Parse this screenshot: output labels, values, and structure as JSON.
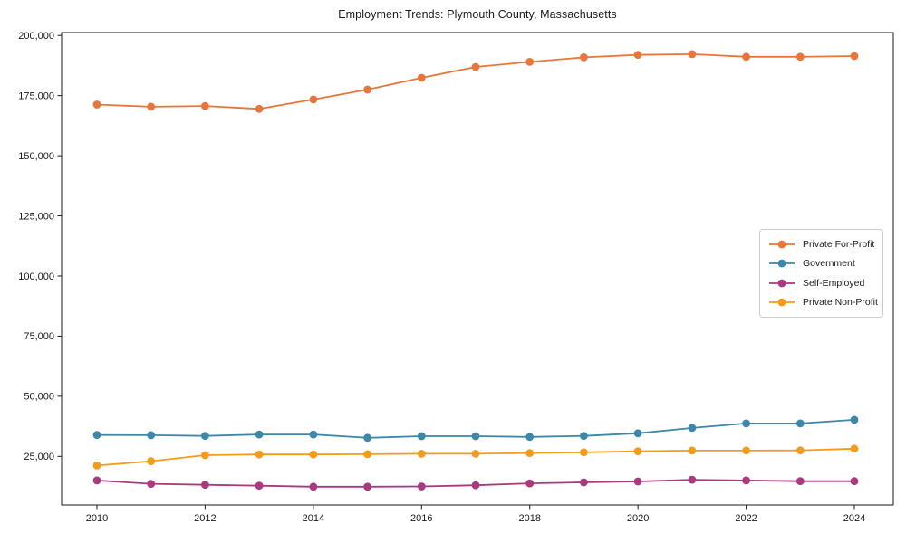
{
  "chart_data": {
    "type": "line",
    "title": "Employment Trends: Plymouth County, Massachusetts",
    "x": [
      2010,
      2011,
      2012,
      2013,
      2014,
      2015,
      2016,
      2017,
      2018,
      2019,
      2020,
      2021,
      2022,
      2023,
      2024
    ],
    "series": [
      {
        "name": "Private For-Profit",
        "color": "#e8763b",
        "values": [
          171300,
          170400,
          170700,
          169500,
          173400,
          177500,
          182400,
          186900,
          189000,
          190900,
          191900,
          192200,
          191100,
          191100,
          191400
        ]
      },
      {
        "name": "Government",
        "color": "#3d87a8",
        "values": [
          33900,
          33800,
          33500,
          34100,
          34100,
          32700,
          33400,
          33400,
          33100,
          33500,
          34600,
          36800,
          38700,
          38700,
          40200
        ]
      },
      {
        "name": "Self-Employed",
        "color": "#a83a7d",
        "values": [
          15000,
          13600,
          13200,
          12800,
          12400,
          12400,
          12500,
          13000,
          13800,
          14200,
          14600,
          15300,
          15000,
          14700,
          14700
        ]
      },
      {
        "name": "Private Non-Profit",
        "color": "#f29c1b",
        "values": [
          21200,
          23000,
          25500,
          25800,
          25800,
          25900,
          26100,
          26100,
          26400,
          26700,
          27100,
          27400,
          27400,
          27500,
          28200
        ]
      }
    ],
    "xticks": [
      2010,
      2012,
      2014,
      2016,
      2018,
      2020,
      2022,
      2024
    ],
    "yticks": [
      25000,
      50000,
      75000,
      100000,
      125000,
      150000,
      175000,
      200000
    ],
    "xlim": [
      2009.347,
      2024.72
    ],
    "ylim": [
      4800,
      201200
    ],
    "grid": false,
    "legend_position": "center-right",
    "axis_color": "#1a1a1a"
  }
}
